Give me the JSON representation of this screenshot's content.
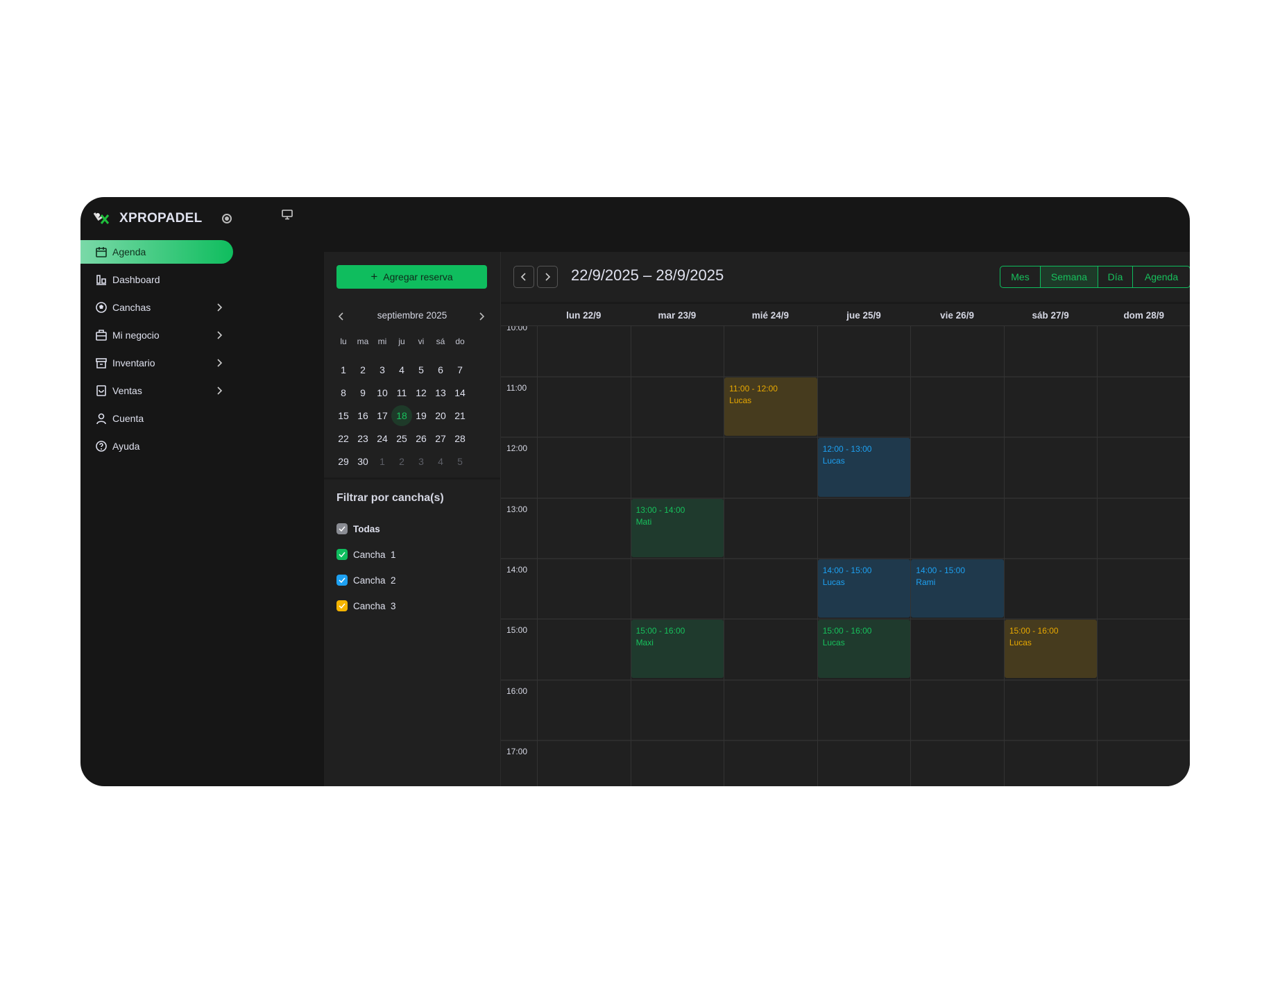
{
  "brand": {
    "name": "XPROPADEL"
  },
  "sidebar": {
    "items": [
      {
        "label": "Agenda",
        "icon": "calendar-icon",
        "active": true,
        "chevron": false
      },
      {
        "label": "Dashboard",
        "icon": "bar-chart-icon",
        "chevron": false
      },
      {
        "label": "Canchas",
        "icon": "ball-icon",
        "chevron": true
      },
      {
        "label": "Mi negocio",
        "icon": "briefcase-icon",
        "chevron": true
      },
      {
        "label": "Inventario",
        "icon": "archive-icon",
        "chevron": true
      },
      {
        "label": "Ventas",
        "icon": "shopping-bag-icon",
        "chevron": true
      },
      {
        "label": "Cuenta",
        "icon": "user-icon",
        "chevron": false
      },
      {
        "label": "Ayuda",
        "icon": "help-icon",
        "chevron": false
      }
    ]
  },
  "panel": {
    "add_button": "Agregar reserva",
    "mini_calendar": {
      "title": "septiembre 2025",
      "weekdays": [
        "lu",
        "ma",
        "mi",
        "ju",
        "vi",
        "sá",
        "do"
      ],
      "weeks": [
        [
          "1",
          "2",
          "3",
          "4",
          "5",
          "6",
          "7"
        ],
        [
          "8",
          "9",
          "10",
          "11",
          "12",
          "13",
          "14"
        ],
        [
          "15",
          "16",
          "17",
          "18",
          "19",
          "20",
          "21"
        ],
        [
          "22",
          "23",
          "24",
          "25",
          "26",
          "27",
          "28"
        ],
        [
          "29",
          "30",
          "1",
          "2",
          "3",
          "4",
          "5"
        ]
      ],
      "today": "18"
    },
    "filter": {
      "title": "Filtrar por cancha(s)",
      "options": [
        {
          "label": "Todas",
          "color": "#8a8c93",
          "checked": true
        },
        {
          "label": "Cancha  1",
          "color": "#0fbd5e",
          "checked": true
        },
        {
          "label": "Cancha  2",
          "color": "#1da1f2",
          "checked": true
        },
        {
          "label": "Cancha  3",
          "color": "#f5b400",
          "checked": true
        }
      ]
    }
  },
  "calendar": {
    "range": "22/9/2025 – 28/9/2025",
    "views": [
      "Mes",
      "Semana",
      "Día",
      "Agenda"
    ],
    "active_view": "Semana",
    "days": [
      "lun 22/9",
      "mar 23/9",
      "mié 24/9",
      "jue 25/9",
      "vie 26/9",
      "sáb 27/9",
      "dom 28/9"
    ],
    "hours": [
      "10:00",
      "11:00",
      "12:00",
      "13:00",
      "14:00",
      "15:00",
      "16:00",
      "17:00"
    ],
    "court_colors": {
      "1": {
        "bg": "#1f3a2d",
        "fg": "#17c05c"
      },
      "2": {
        "bg": "#1f394c",
        "fg": "#1da1f2"
      },
      "3": {
        "bg": "#463b1e",
        "fg": "#e8a800"
      }
    },
    "events": [
      {
        "day": 2,
        "start": 11,
        "end": 12,
        "time": "11:00 - 12:00",
        "name": "Lucas",
        "court": "3"
      },
      {
        "day": 3,
        "start": 12,
        "end": 13,
        "time": "12:00 - 13:00",
        "name": "Lucas",
        "court": "2"
      },
      {
        "day": 1,
        "start": 13,
        "end": 14,
        "time": "13:00 - 14:00",
        "name": "Mati",
        "court": "1"
      },
      {
        "day": 3,
        "start": 14,
        "end": 15,
        "time": "14:00 - 15:00",
        "name": "Lucas",
        "court": "2"
      },
      {
        "day": 4,
        "start": 14,
        "end": 15,
        "time": "14:00 - 15:00",
        "name": "Rami",
        "court": "2"
      },
      {
        "day": 1,
        "start": 15,
        "end": 16,
        "time": "15:00 - 16:00",
        "name": "Maxi",
        "court": "1"
      },
      {
        "day": 3,
        "start": 15,
        "end": 16,
        "time": "15:00 - 16:00",
        "name": "Lucas",
        "court": "1"
      },
      {
        "day": 5,
        "start": 15,
        "end": 16,
        "time": "15:00 - 16:00",
        "name": "Lucas",
        "court": "3"
      }
    ]
  }
}
